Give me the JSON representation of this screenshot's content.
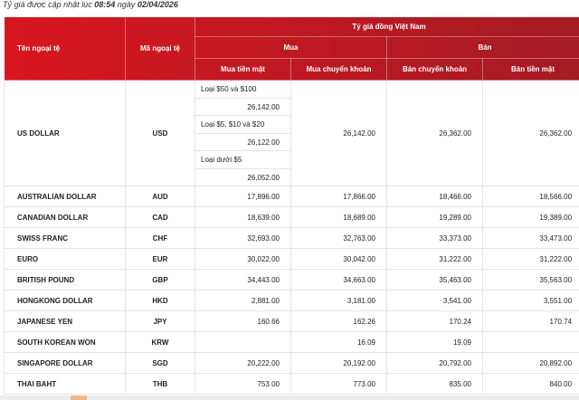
{
  "update": {
    "prefix": "Tỷ giá được cập nhật lúc",
    "time": "08:54",
    "mid": "ngày",
    "date": "02/04/2026"
  },
  "header": {
    "name": "Tên ngoại tệ",
    "code": "Mã ngoại tệ",
    "group": "Tỷ giá đồng Việt Nam",
    "buy": "Mua",
    "sell": "Bán",
    "buy_cash": "Mua tiền mặt",
    "buy_transfer": "Mua chuyển khoản",
    "sell_transfer": "Bán chuyển khoản",
    "sell_cash": "Bán tiền mặt"
  },
  "usd": {
    "name": "US DOLLAR",
    "code": "USD",
    "buy_transfer": "26,142.00",
    "sell_transfer": "26,362.00",
    "sell_cash": "26,362.00",
    "cash": [
      {
        "label": "Loại $50 và $100",
        "value": "26,142.00"
      },
      {
        "label": "Loại $5, $10 và $20",
        "value": "26,122.00"
      },
      {
        "label": "Loại dưới $5",
        "value": "26,052.00"
      }
    ]
  },
  "rows": [
    {
      "name": "AUSTRALIAN DOLLAR",
      "code": "AUD",
      "buy_cash": "17,896.00",
      "buy_transfer": "17,866.00",
      "sell_transfer": "18,466.00",
      "sell_cash": "18,566.00"
    },
    {
      "name": "CANADIAN DOLLAR",
      "code": "CAD",
      "buy_cash": "18,639.00",
      "buy_transfer": "18,689.00",
      "sell_transfer": "19,289.00",
      "sell_cash": "19,389.00"
    },
    {
      "name": "SWISS FRANC",
      "code": "CHF",
      "buy_cash": "32,693.00",
      "buy_transfer": "32,763.00",
      "sell_transfer": "33,373.00",
      "sell_cash": "33,473.00"
    },
    {
      "name": "EURO",
      "code": "EUR",
      "buy_cash": "30,022.00",
      "buy_transfer": "30,042.00",
      "sell_transfer": "31,222.00",
      "sell_cash": "31,222.00"
    },
    {
      "name": "BRITISH POUND",
      "code": "GBP",
      "buy_cash": "34,443.00",
      "buy_transfer": "34,663.00",
      "sell_transfer": "35,463.00",
      "sell_cash": "35,563.00"
    },
    {
      "name": "HONGKONG DOLLAR",
      "code": "HKD",
      "buy_cash": "2,881.00",
      "buy_transfer": "3,181.00",
      "sell_transfer": "3,541.00",
      "sell_cash": "3,551.00"
    },
    {
      "name": "JAPANESE YEN",
      "code": "JPY",
      "buy_cash": "160.66",
      "buy_transfer": "162.26",
      "sell_transfer": "170.24",
      "sell_cash": "170.74"
    },
    {
      "name": "SOUTH KOREAN WON",
      "code": "KRW",
      "buy_cash": "",
      "buy_transfer": "16.09",
      "sell_transfer": "19.09",
      "sell_cash": ""
    },
    {
      "name": "SINGAPORE DOLLAR",
      "code": "SGD",
      "buy_cash": "20,222.00",
      "buy_transfer": "20,192.00",
      "sell_transfer": "20,792.00",
      "sell_cash": "20,892.00"
    },
    {
      "name": "THAI BAHT",
      "code": "THB",
      "buy_cash": "753.00",
      "buy_transfer": "773.00",
      "sell_transfer": "835.00",
      "sell_cash": "840.00"
    }
  ]
}
